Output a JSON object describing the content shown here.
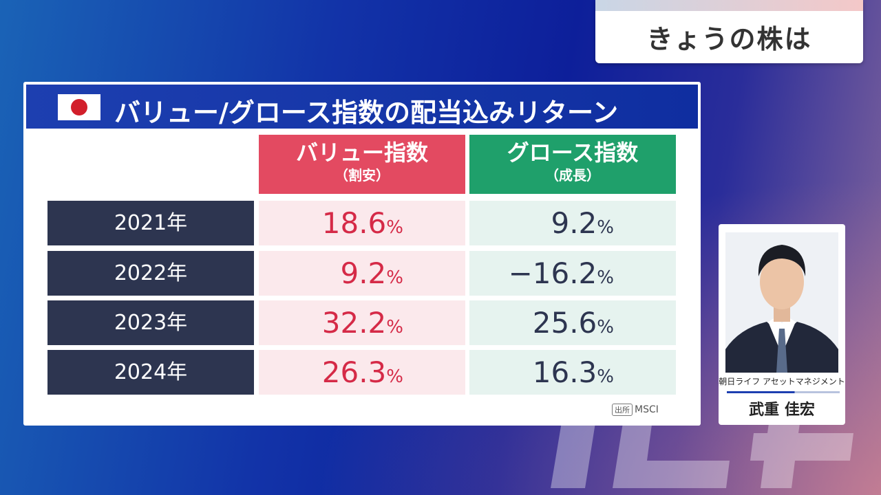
{
  "topic": {
    "label": "きょうの株は"
  },
  "panel": {
    "title": "バリュー/グロース指数の配当込みリターン",
    "columns": [
      {
        "name": "バリュー指数",
        "sub": "（割安）",
        "color": "#e34a61"
      },
      {
        "name": "グロース指数",
        "sub": "（成長）",
        "color": "#1fa06b"
      }
    ],
    "rows": [
      {
        "year": "2021年",
        "value": "18.6",
        "growth": "9.2"
      },
      {
        "year": "2022年",
        "value": "9.2",
        "growth": "−16.2"
      },
      {
        "year": "2023年",
        "value": "32.2",
        "growth": "25.6"
      },
      {
        "year": "2024年",
        "value": "26.3",
        "growth": "16.3"
      }
    ],
    "pct_symbol": "%",
    "source_label": "出所",
    "source_name": "MSCI"
  },
  "guest": {
    "company": "朝日ライフ アセットマネジメント",
    "name": "武重 佳宏"
  },
  "watermark": "テレ東"
}
